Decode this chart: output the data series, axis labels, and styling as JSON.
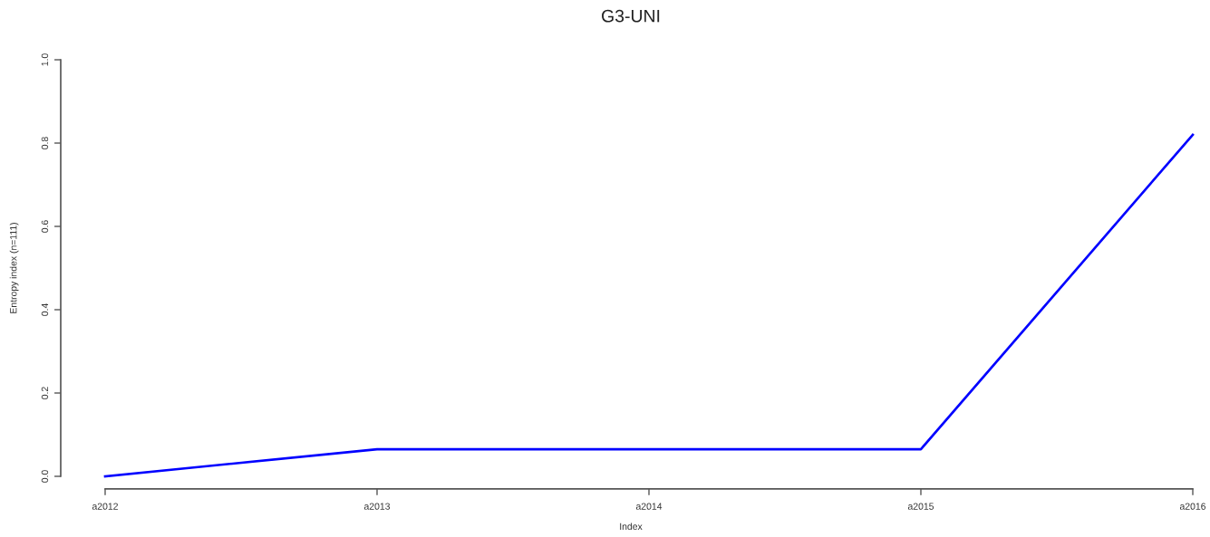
{
  "chart_data": {
    "type": "line",
    "title": "G3-UNI",
    "xlabel": "Index",
    "ylabel": "Entropy index (n=111)",
    "categories": [
      "a2012",
      "a2013",
      "a2014",
      "a2015",
      "a2016"
    ],
    "series": [
      {
        "color": "#0000ff",
        "values": [
          0,
          0.065,
          0.065,
          0.065,
          0.82
        ]
      }
    ],
    "ylim": [
      0,
      1
    ],
    "yticks": [
      {
        "value": 0,
        "label": "0.0"
      },
      0.2,
      0.4,
      0.6,
      0.8,
      {
        "value": 1,
        "label": "1.0"
      }
    ],
    "grid": false,
    "marker": "none",
    "line_style": "solid"
  }
}
